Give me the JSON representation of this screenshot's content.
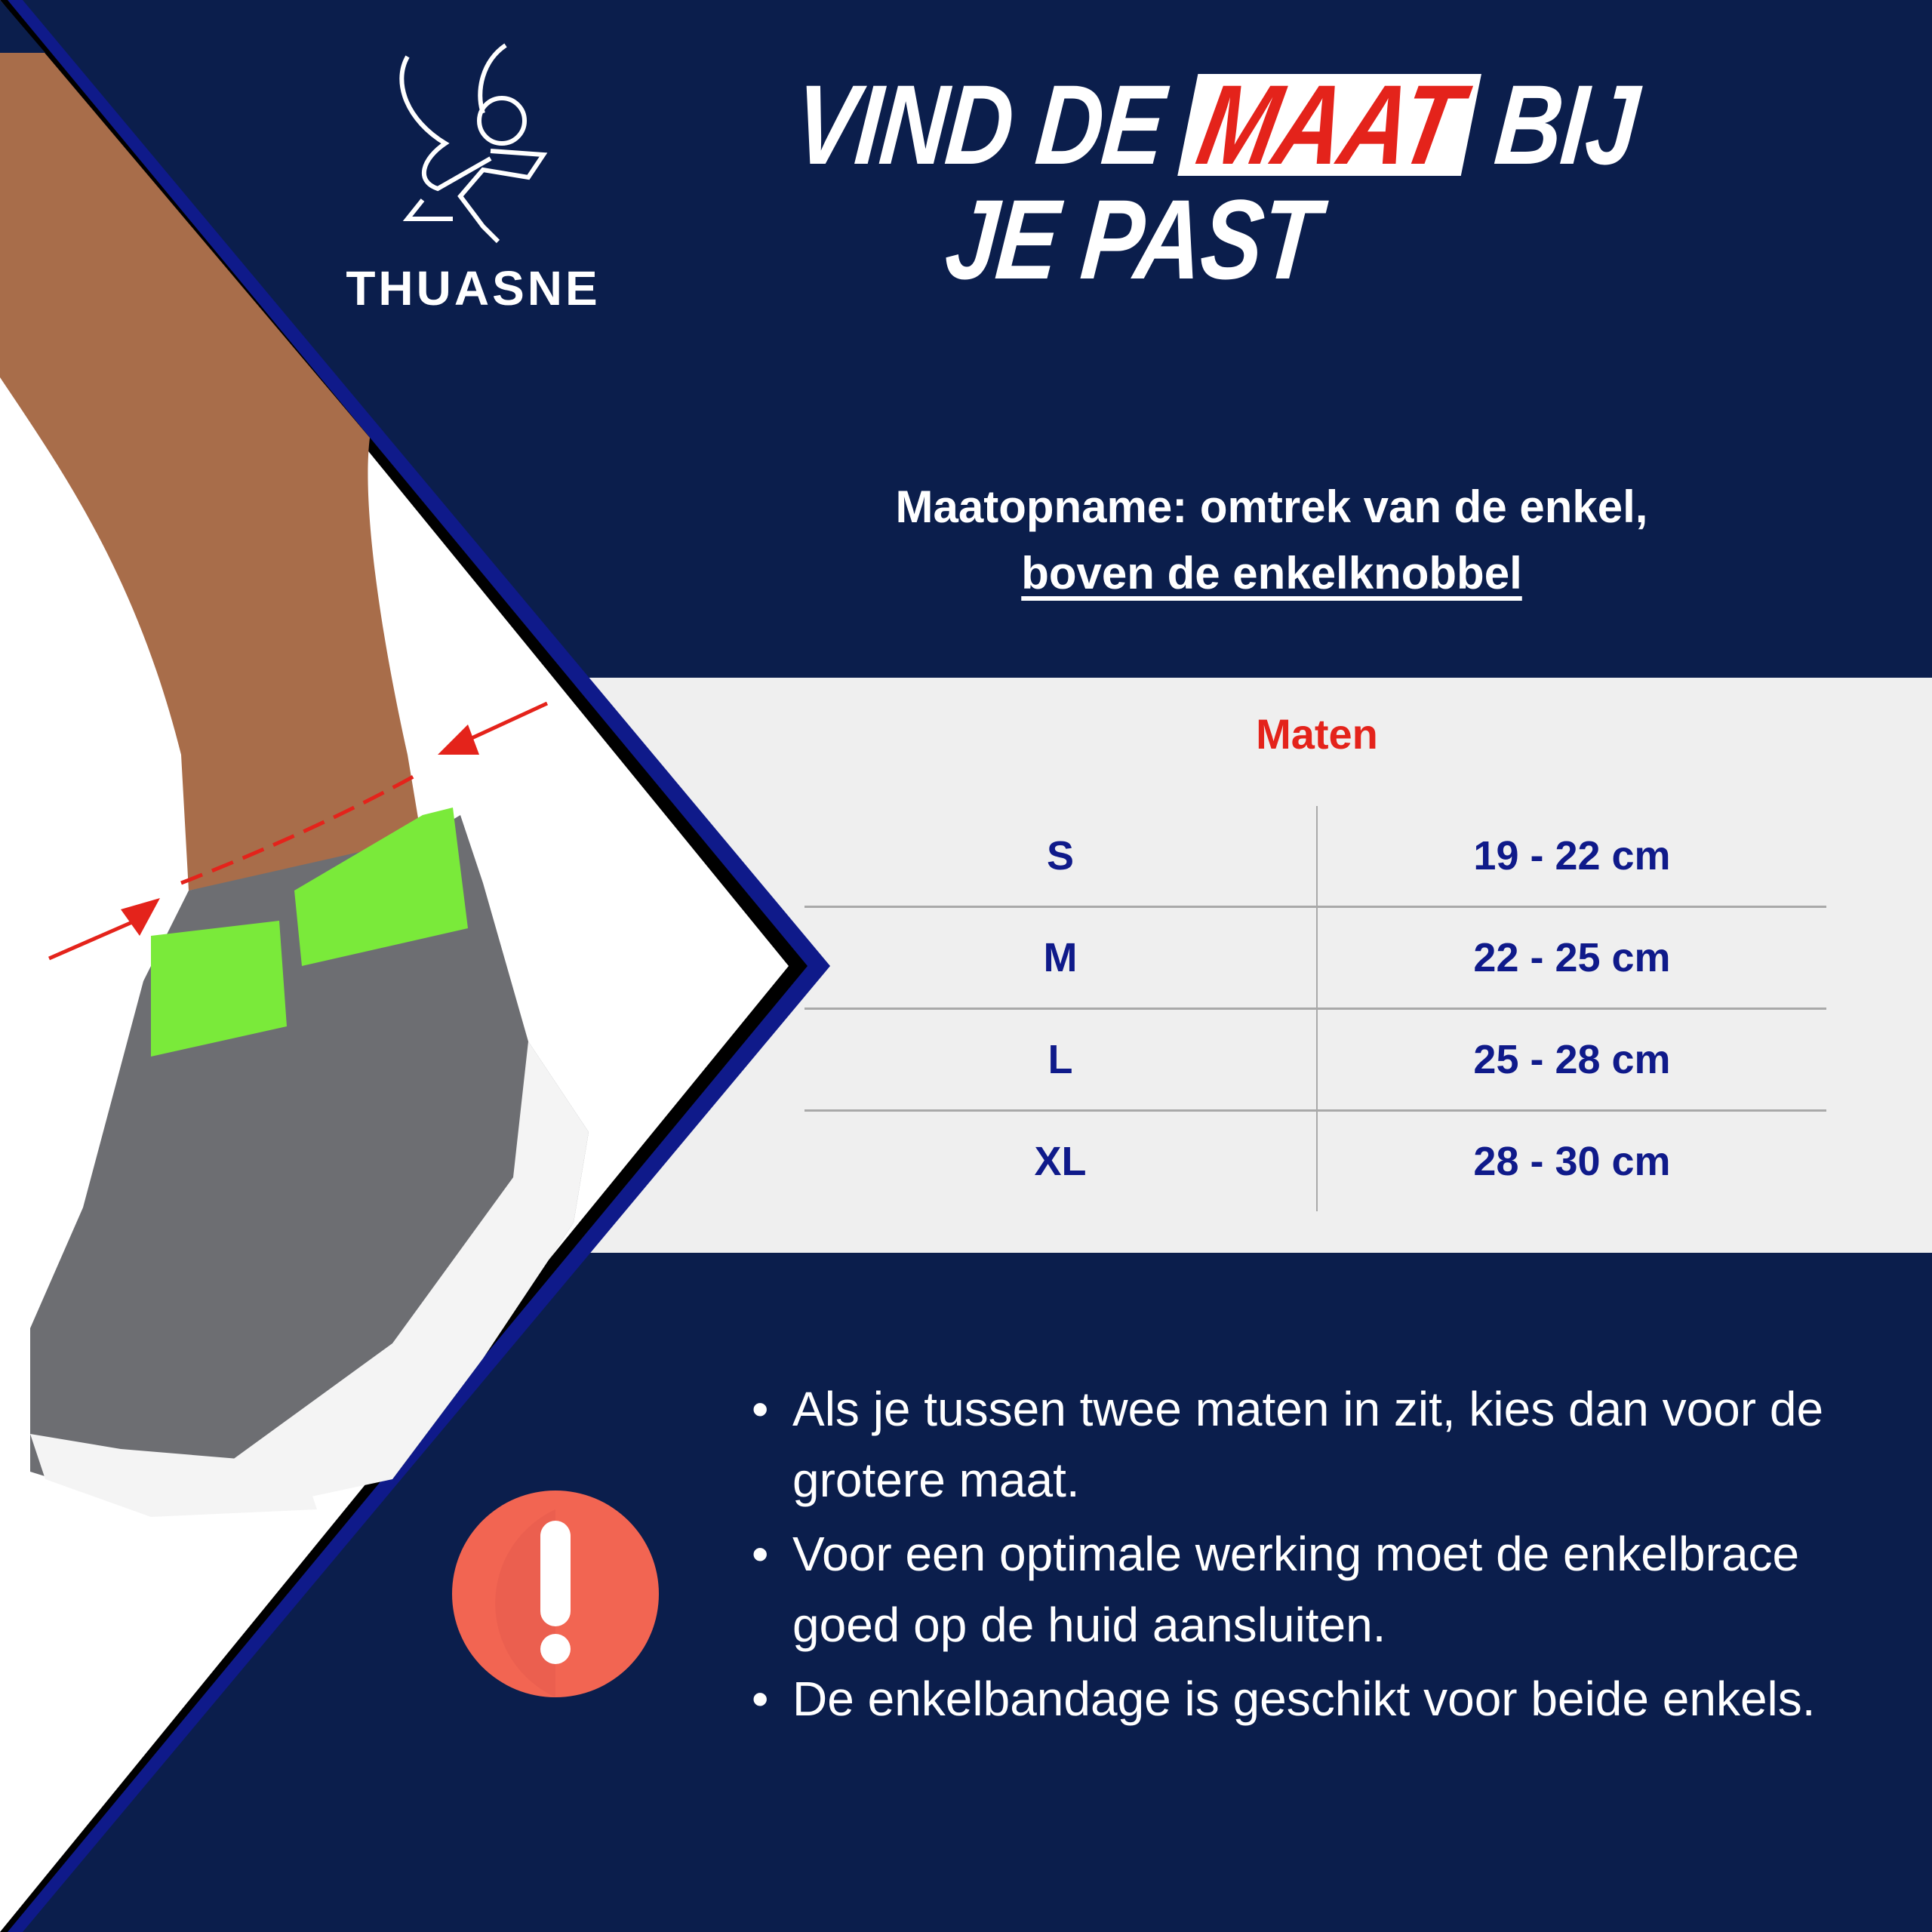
{
  "brand": {
    "name": "THUASNE",
    "logo_icon": "winged-cherub-logo"
  },
  "title": {
    "part1": "VIND DE",
    "highlight": "MAAT",
    "part2": "BIJ",
    "line2": "JE PAST"
  },
  "subtitle": {
    "line1": "Maatopname: omtrek van de enkel,",
    "line2": "boven de enkelknobbel"
  },
  "size_table": {
    "title": "Maten",
    "rows": [
      {
        "size": "S",
        "range": "19 - 22 cm"
      },
      {
        "size": "M",
        "range": "22 - 25 cm"
      },
      {
        "size": "L",
        "range": "25 - 28 cm"
      },
      {
        "size": "XL",
        "range": "28 - 30 cm"
      }
    ]
  },
  "notes": {
    "icon": "exclamation-icon",
    "bullet": "•",
    "items": [
      "Als je tussen twee maten in zit, kies dan voor de grotere maat.",
      "Voor een optimale werking moet de enkelbrace goed op de huid aansluiten.",
      "De enkelbandage is geschikt voor beide enkels."
    ]
  },
  "colors": {
    "navy": "#0b1e4c",
    "accent_red": "#e4231b",
    "table_text": "#0f1a8a",
    "panel": "#efefef",
    "warning": "#f26552"
  }
}
